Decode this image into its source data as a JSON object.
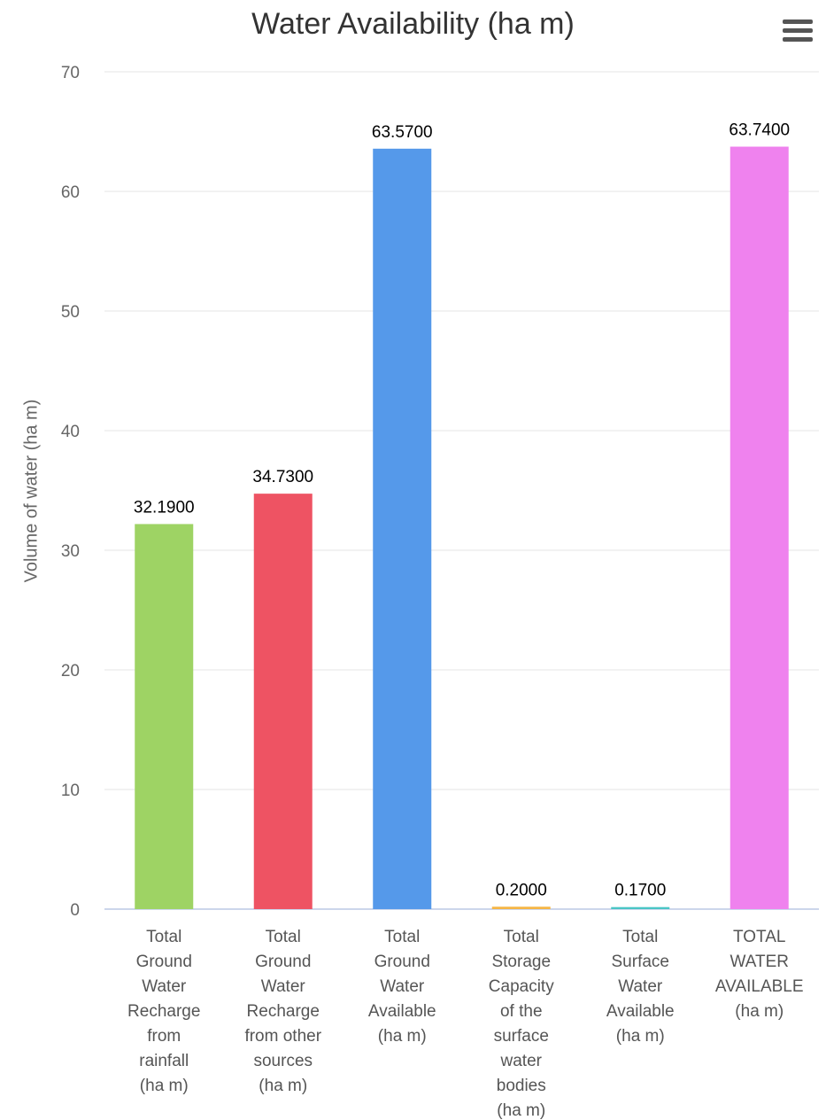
{
  "chart_data": {
    "type": "bar",
    "title": "Water Availability (ha m)",
    "ylabel": "Volume of water (ha m)",
    "xlabel": "",
    "ylim": [
      0,
      70
    ],
    "yticks": [
      0,
      10,
      20,
      30,
      40,
      50,
      60,
      70
    ],
    "grid": true,
    "categories": [
      "Total Ground Water Recharge from rainfall (ha m)",
      "Total Ground Water Recharge from other sources (ha m)",
      "Total Ground Water Available (ha m)",
      "Total Storage Capacity of the surface water bodies (ha m)",
      "Total Surface Water Available (ha m)",
      "TOTAL WATER AVAILABLE (ha m)"
    ],
    "category_lines": [
      [
        "Total",
        "Ground",
        "Water",
        "Recharge",
        "from",
        "rainfall",
        "(ha m)"
      ],
      [
        "Total",
        "Ground",
        "Water",
        "Recharge",
        "from other",
        "sources",
        "(ha m)"
      ],
      [
        "Total",
        "Ground",
        "Water",
        "Available",
        "(ha m)"
      ],
      [
        "Total",
        "Storage",
        "Capacity",
        "of the",
        "surface",
        "water",
        "bodies",
        "(ha m)"
      ],
      [
        "Total",
        "Surface",
        "Water",
        "Available",
        "(ha m)"
      ],
      [
        "TOTAL",
        "WATER",
        "AVAILABLE",
        "(ha m)"
      ]
    ],
    "values": [
      32.19,
      34.73,
      63.57,
      0.2,
      0.17,
      63.74
    ],
    "data_labels": [
      "32.1900",
      "34.7300",
      "63.5700",
      "0.2000",
      "0.1700",
      "63.7400"
    ],
    "colors": [
      "#9ed364",
      "#ee5363",
      "#5599ea",
      "#f5b544",
      "#4ac5c5",
      "#ef82ee"
    ]
  },
  "menu_icon": "hamburger-menu-icon"
}
